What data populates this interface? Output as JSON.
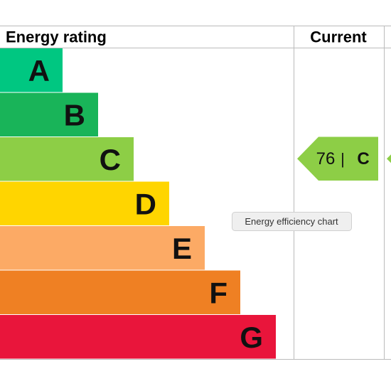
{
  "header": {
    "title": "Energy rating",
    "current": "Current"
  },
  "bands": [
    {
      "letter": "A",
      "color": "#00c781"
    },
    {
      "letter": "B",
      "color": "#19b459"
    },
    {
      "letter": "C",
      "color": "#8dce46"
    },
    {
      "letter": "D",
      "color": "#ffd500"
    },
    {
      "letter": "E",
      "color": "#fcaa65"
    },
    {
      "letter": "F",
      "color": "#ef8023"
    },
    {
      "letter": "G",
      "color": "#e9153b"
    }
  ],
  "current": {
    "value": 76,
    "separator": "|",
    "letter": "C",
    "color": "#8dce46"
  },
  "tooltip": "Energy efficiency chart"
}
